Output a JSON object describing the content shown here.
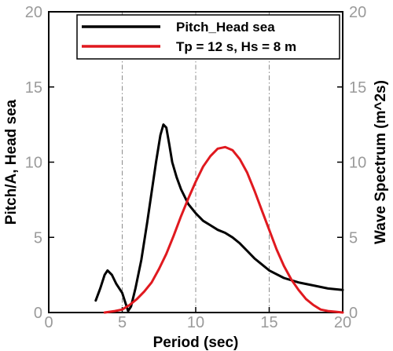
{
  "chart_data": {
    "type": "line",
    "xlabel": "Period (sec)",
    "ylabel_left": "Pitch/A, Head sea",
    "ylabel_right": "Wave Spectrum (m^2s)",
    "xlim": [
      0,
      20
    ],
    "ylim_left": [
      0,
      20
    ],
    "ylim_right": [
      0,
      20
    ],
    "x_ticks": [
      0,
      5,
      10,
      15,
      20
    ],
    "y_ticks_left": [
      0,
      5,
      10,
      15,
      20
    ],
    "y_ticks_right": [
      0,
      5,
      10,
      15,
      20
    ],
    "grid": "dash-dot at x = 5, 10, 15",
    "legend_position": "top-right",
    "series": [
      {
        "name": "Pitch_Head sea",
        "axis": "left",
        "color": "#000000",
        "x": [
          3.2,
          3.5,
          3.8,
          4.0,
          4.3,
          4.6,
          5.0,
          5.2,
          5.4,
          5.6,
          5.9,
          6.3,
          6.7,
          7.0,
          7.3,
          7.6,
          7.8,
          8.0,
          8.2,
          8.4,
          8.7,
          9.0,
          9.5,
          10.0,
          10.5,
          11.0,
          11.5,
          12.0,
          12.5,
          13.0,
          13.5,
          14.0,
          14.5,
          15.0,
          16.0,
          17.0,
          18.0,
          19.0,
          20.0
        ],
        "y": [
          0.8,
          1.6,
          2.5,
          2.8,
          2.5,
          1.9,
          1.3,
          0.7,
          0.1,
          0.4,
          1.6,
          3.5,
          6.0,
          8.0,
          10.0,
          11.8,
          12.5,
          12.3,
          11.2,
          10.0,
          9.0,
          8.2,
          7.2,
          6.6,
          6.1,
          5.8,
          5.5,
          5.3,
          5.0,
          4.6,
          4.1,
          3.6,
          3.2,
          2.8,
          2.3,
          2.0,
          1.8,
          1.6,
          1.5
        ]
      },
      {
        "name": "Tp = 12 s, Hs = 8 m",
        "axis": "right",
        "color": "#e0191f",
        "x": [
          3.8,
          4.5,
          5.0,
          5.5,
          6.0,
          6.5,
          7.0,
          7.5,
          8.0,
          8.5,
          9.0,
          9.5,
          10.0,
          10.5,
          11.0,
          11.5,
          12.0,
          12.5,
          13.0,
          13.5,
          14.0,
          14.5,
          15.0,
          15.5,
          16.0,
          16.5,
          17.0,
          17.5,
          18.0,
          18.5,
          19.0,
          19.5,
          20.0
        ],
        "y": [
          0.0,
          0.1,
          0.2,
          0.5,
          0.9,
          1.4,
          2.0,
          2.9,
          3.9,
          5.1,
          6.4,
          7.6,
          8.7,
          9.7,
          10.4,
          10.9,
          11.0,
          10.8,
          10.2,
          9.3,
          8.1,
          6.8,
          5.5,
          4.2,
          3.1,
          2.2,
          1.5,
          0.9,
          0.5,
          0.2,
          0.1,
          0.05,
          0.0
        ]
      }
    ]
  }
}
